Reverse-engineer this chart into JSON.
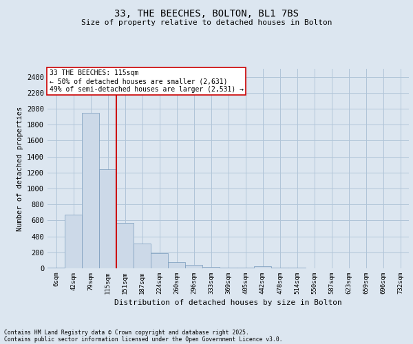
{
  "title1": "33, THE BEECHES, BOLTON, BL1 7BS",
  "title2": "Size of property relative to detached houses in Bolton",
  "xlabel": "Distribution of detached houses by size in Bolton",
  "ylabel": "Number of detached properties",
  "annotation_label": "33 THE BEECHES: 115sqm",
  "annotation_line1": "← 50% of detached houses are smaller (2,631)",
  "annotation_line2": "49% of semi-detached houses are larger (2,531) →",
  "footer1": "Contains HM Land Registry data © Crown copyright and database right 2025.",
  "footer2": "Contains public sector information licensed under the Open Government Licence v3.0.",
  "bar_color": "#ccd9e8",
  "bar_edge_color": "#7799bb",
  "grid_color": "#b0c4d8",
  "vline_color": "#cc0000",
  "background_color": "#dce6f0",
  "plot_bg_color": "#dce6f0",
  "box_edge_color": "#cc0000",
  "categories": [
    "6sqm",
    "42sqm",
    "79sqm",
    "115sqm",
    "151sqm",
    "187sqm",
    "224sqm",
    "260sqm",
    "296sqm",
    "333sqm",
    "369sqm",
    "405sqm",
    "442sqm",
    "478sqm",
    "514sqm",
    "550sqm",
    "587sqm",
    "623sqm",
    "659sqm",
    "696sqm",
    "732sqm"
  ],
  "values": [
    8,
    670,
    1950,
    1240,
    570,
    310,
    190,
    80,
    45,
    20,
    8,
    5,
    28,
    5,
    5,
    3,
    3,
    3,
    3,
    3,
    3
  ],
  "vline_position": 3,
  "ylim": [
    0,
    2500
  ],
  "yticks": [
    0,
    200,
    400,
    600,
    800,
    1000,
    1200,
    1400,
    1600,
    1800,
    2000,
    2200,
    2400
  ]
}
